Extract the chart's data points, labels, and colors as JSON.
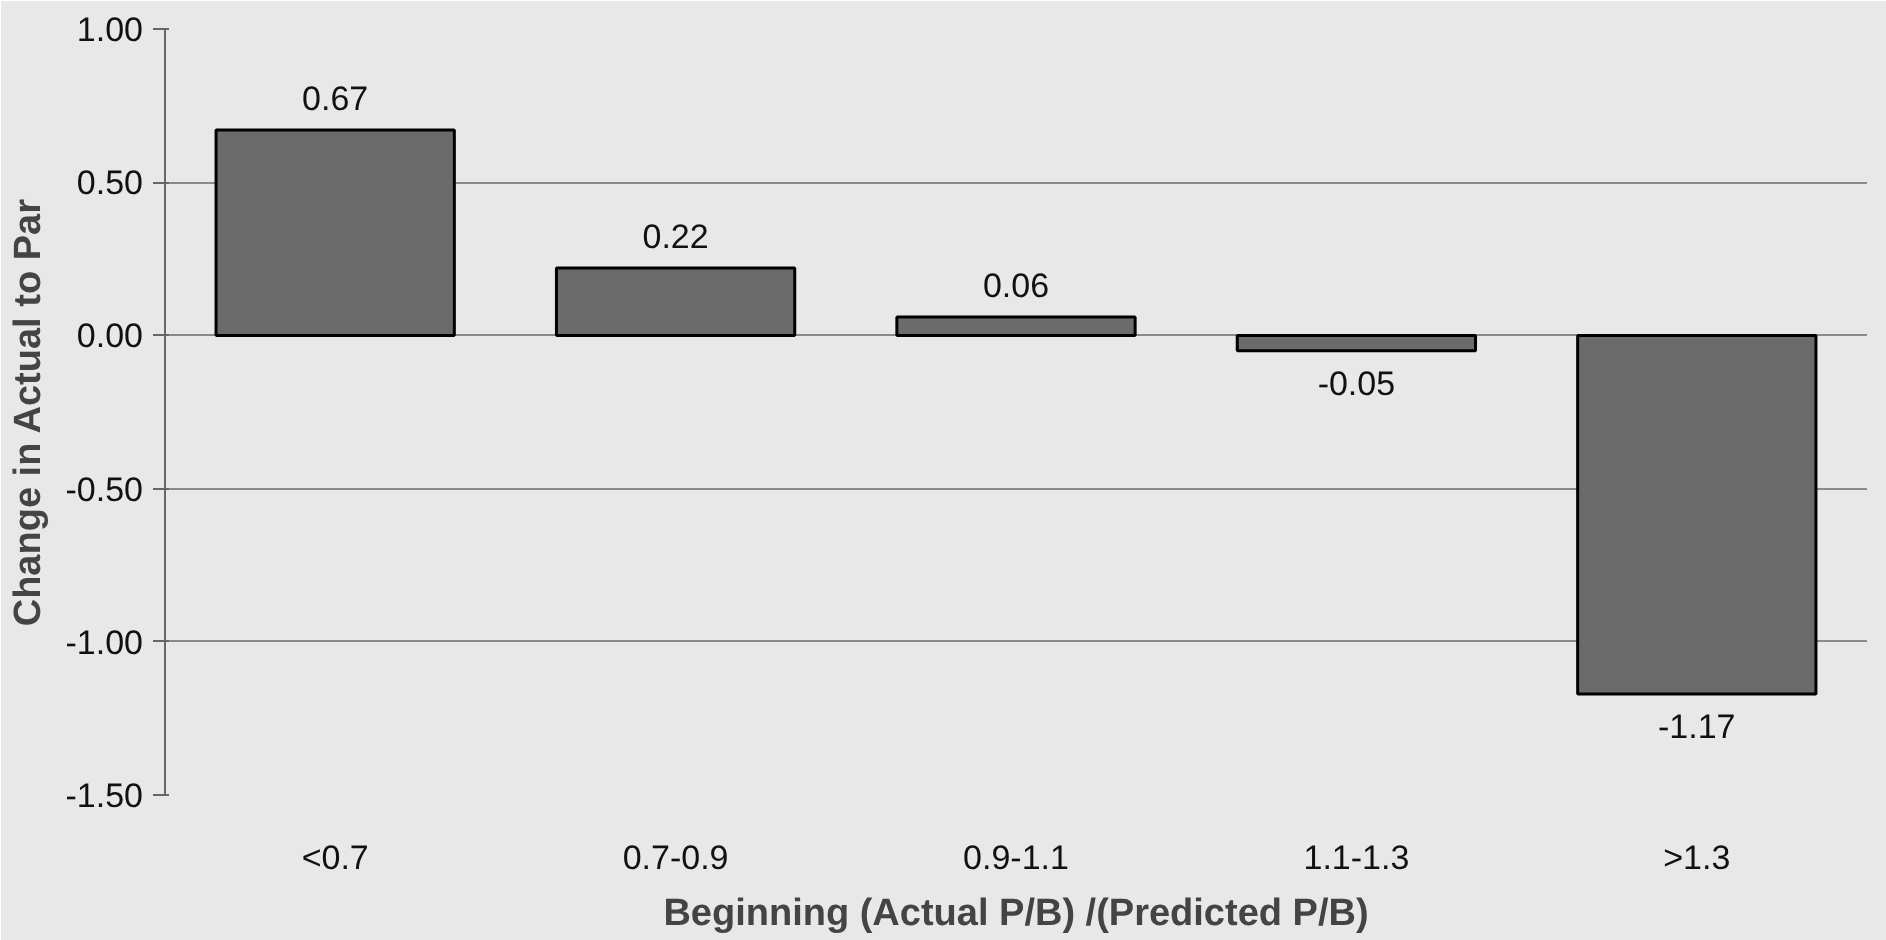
{
  "chart_data": {
    "type": "bar",
    "xlabel": "Beginning (Actual P/B) /(Predicted P/B)",
    "ylabel": "Change in Actual to Par",
    "categories": [
      "<0.7",
      "0.7-0.9",
      "0.9-1.1",
      "1.1-1.3",
      ">1.3"
    ],
    "values": [
      0.67,
      0.22,
      0.06,
      -0.05,
      -1.17
    ],
    "color": "#6b6b6b",
    "data_labels": true,
    "ylim": [
      -1.5,
      1.0
    ],
    "yticks": [
      {
        "value": -1.5,
        "label": "-1.50"
      },
      {
        "value": -1.0,
        "label": "-1.00"
      },
      {
        "value": -0.5,
        "label": "-0.50"
      },
      {
        "value": 0,
        "label": "0.00"
      },
      {
        "value": 0.5,
        "label": "0.50"
      },
      {
        "value": 1.0,
        "label": "1.00"
      }
    ],
    "grid": "y"
  }
}
